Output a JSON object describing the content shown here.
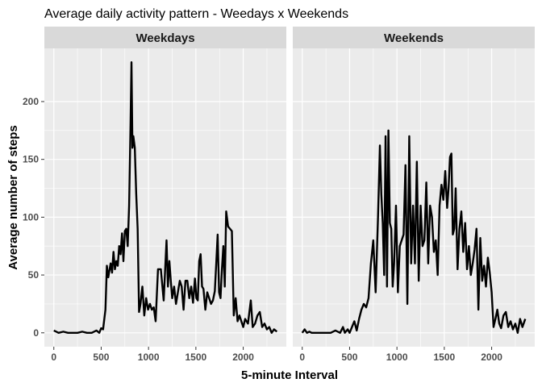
{
  "chart_data": {
    "type": "line",
    "title": "Average daily activity pattern - Weedays x Weekends",
    "xlabel": "5-minute Interval",
    "ylabel": "Average number of steps",
    "xlim": [
      -100,
      2455
    ],
    "ylim": [
      -12,
      246
    ],
    "x_ticks": [
      0,
      500,
      1000,
      1500,
      2000
    ],
    "y_ticks": [
      0,
      50,
      100,
      150,
      200
    ],
    "grid": true,
    "line_color": "#000000",
    "panel_background": "#ebebeb",
    "strip_background": "#d9d9d9",
    "panels": [
      {
        "label": "Weekdays",
        "x": [
          0,
          50,
          100,
          150,
          200,
          250,
          300,
          350,
          400,
          450,
          480,
          500,
          520,
          545,
          560,
          575,
          600,
          615,
          630,
          645,
          660,
          675,
          690,
          705,
          720,
          735,
          750,
          765,
          780,
          795,
          810,
          820,
          830,
          840,
          855,
          870,
          885,
          900,
          915,
          935,
          955,
          975,
          995,
          1015,
          1035,
          1055,
          1075,
          1100,
          1130,
          1160,
          1190,
          1205,
          1220,
          1235,
          1250,
          1270,
          1290,
          1310,
          1330,
          1350,
          1370,
          1390,
          1410,
          1430,
          1450,
          1470,
          1490,
          1505,
          1520,
          1535,
          1550,
          1565,
          1580,
          1600,
          1620,
          1640,
          1660,
          1680,
          1700,
          1715,
          1730,
          1745,
          1760,
          1775,
          1790,
          1805,
          1820,
          1840,
          1860,
          1880,
          1900,
          1920,
          1940,
          1960,
          1980,
          2000,
          2020,
          2050,
          2080,
          2100,
          2125,
          2150,
          2175,
          2200,
          2225,
          2250,
          2275,
          2300,
          2325,
          2355
        ],
        "y": [
          2,
          0,
          1,
          0,
          0,
          0,
          1,
          0,
          0,
          2,
          0,
          4,
          3,
          20,
          58,
          48,
          60,
          52,
          70,
          55,
          62,
          58,
          75,
          68,
          86,
          62,
          88,
          90,
          75,
          110,
          180,
          234,
          160,
          170,
          160,
          120,
          90,
          18,
          25,
          40,
          15,
          30,
          20,
          25,
          20,
          22,
          10,
          55,
          55,
          28,
          80,
          40,
          62,
          45,
          30,
          40,
          25,
          35,
          45,
          40,
          20,
          45,
          45,
          30,
          40,
          26,
          47,
          30,
          28,
          62,
          68,
          40,
          38,
          20,
          35,
          30,
          25,
          28,
          36,
          60,
          85,
          35,
          30,
          55,
          75,
          40,
          105,
          92,
          90,
          88,
          15,
          30,
          10,
          15,
          10,
          5,
          12,
          8,
          28,
          5,
          8,
          15,
          18,
          5,
          8,
          3,
          5,
          0,
          3,
          1
        ]
      },
      {
        "label": "Weekends",
        "x": [
          0,
          25,
          50,
          75,
          100,
          150,
          200,
          250,
          300,
          350,
          400,
          430,
          450,
          480,
          500,
          525,
          550,
          575,
          600,
          625,
          650,
          675,
          700,
          725,
          750,
          775,
          800,
          820,
          835,
          850,
          865,
          880,
          895,
          910,
          925,
          940,
          955,
          970,
          990,
          1010,
          1030,
          1050,
          1070,
          1090,
          1110,
          1130,
          1150,
          1170,
          1190,
          1210,
          1230,
          1250,
          1270,
          1290,
          1310,
          1330,
          1350,
          1370,
          1390,
          1410,
          1430,
          1450,
          1470,
          1490,
          1510,
          1530,
          1545,
          1560,
          1575,
          1590,
          1605,
          1620,
          1640,
          1660,
          1680,
          1700,
          1720,
          1740,
          1760,
          1780,
          1800,
          1820,
          1840,
          1860,
          1880,
          1900,
          1920,
          1940,
          1960,
          1980,
          2000,
          2020,
          2040,
          2060,
          2080,
          2100,
          2125,
          2150,
          2175,
          2200,
          2225,
          2250,
          2275,
          2300,
          2325,
          2355
        ],
        "y": [
          0,
          3,
          0,
          1,
          0,
          0,
          0,
          0,
          0,
          2,
          0,
          5,
          0,
          3,
          0,
          5,
          10,
          2,
          12,
          20,
          25,
          22,
          30,
          60,
          80,
          35,
          100,
          162,
          120,
          95,
          50,
          170,
          40,
          175,
          95,
          90,
          40,
          60,
          110,
          35,
          75,
          80,
          85,
          145,
          25,
          170,
          60,
          110,
          60,
          148,
          45,
          110,
          75,
          80,
          130,
          60,
          110,
          100,
          70,
          80,
          50,
          110,
          128,
          115,
          140,
          108,
          125,
          152,
          155,
          85,
          90,
          125,
          55,
          90,
          105,
          70,
          95,
          55,
          75,
          50,
          60,
          72,
          90,
          20,
          82,
          45,
          58,
          40,
          65,
          52,
          35,
          5,
          12,
          20,
          8,
          4,
          15,
          18,
          5,
          10,
          3,
          8,
          0,
          12,
          5,
          12
        ]
      }
    ]
  }
}
